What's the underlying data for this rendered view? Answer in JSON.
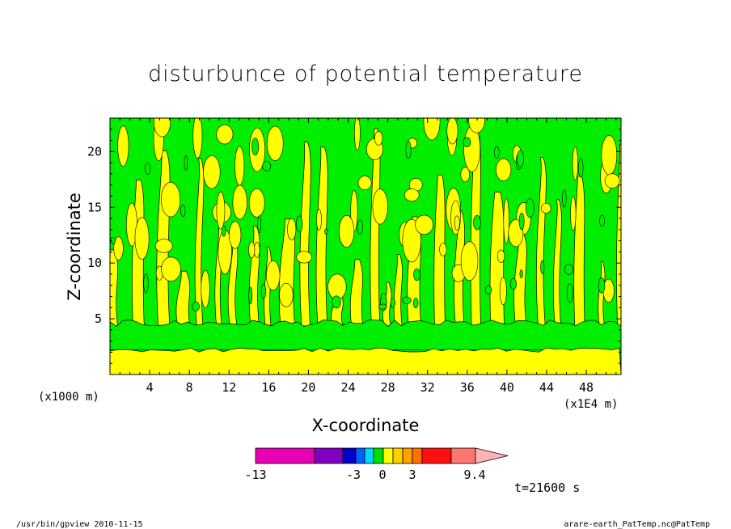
{
  "chart_data": {
    "type": "heatmap",
    "title": "disturbunce of potential temperature",
    "xlabel": "X-coordinate",
    "ylabel": "Z-coordinate",
    "x_unit": "(x1E4 m)",
    "y_unit": "(x1000 m)",
    "x_ticks": [
      4,
      8,
      12,
      16,
      20,
      24,
      28,
      32,
      36,
      40,
      44,
      48
    ],
    "y_ticks": [
      5,
      10,
      15,
      20
    ],
    "xlim": [
      0,
      51.5
    ],
    "ylim": [
      0,
      23
    ],
    "dominant_levels": [
      {
        "z_range": [
          0,
          2.2
        ],
        "category": "0 to 1.5"
      },
      {
        "z_range": [
          2.2,
          4.5
        ],
        "category": "-1.5 to 0"
      },
      {
        "z_range": [
          4.5,
          23
        ],
        "category": "alternating -1.5 to 0 and 0 to 1.5 columns"
      }
    ],
    "colorbar": {
      "tick_labels": [
        "-13",
        "-3",
        "0",
        "3",
        "9.4"
      ],
      "colors": [
        "#e600b4",
        "#8000c0",
        "#0000c8",
        "#0060ff",
        "#00d8ff",
        "#00e000",
        "#ffff00",
        "#ffd000",
        "#ffa000",
        "#ff7000",
        "#ff1010",
        "#ff7870",
        "#ffb4b4"
      ],
      "min": -13,
      "max": 9.4
    },
    "time_label": "t=21600 s",
    "colors": {
      "field_low": "#00ee00",
      "field_high": "#ffff00"
    }
  },
  "footer": {
    "left": "/usr/bin/gpview  2010-11-15",
    "right": "arare-earth_PatTemp.nc@PatTemp"
  }
}
